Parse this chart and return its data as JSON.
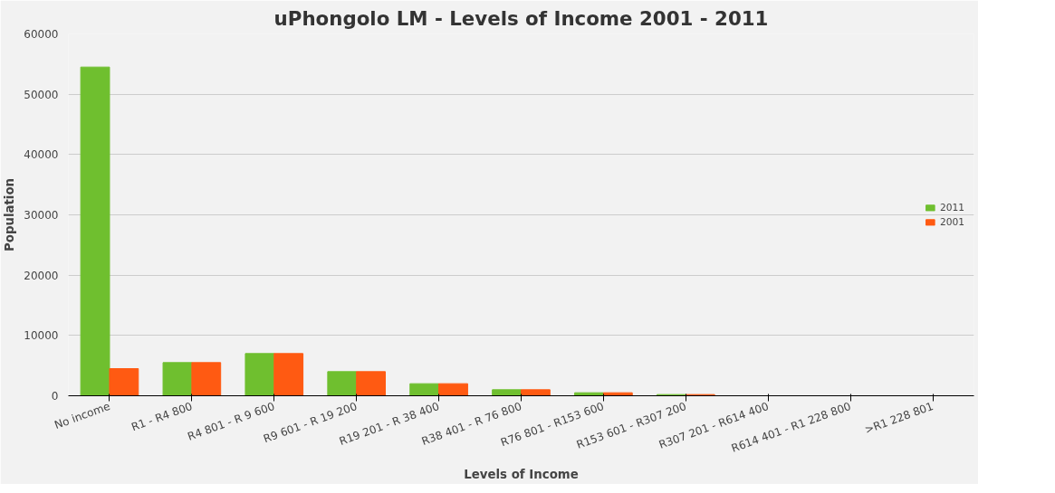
{
  "chart_data": {
    "type": "bar",
    "title": "uPhongolo LM - Levels of Income 2001 - 2011",
    "xlabel": "Levels of Income",
    "ylabel": "Population",
    "categories": [
      "No income",
      "R1 - R4 800",
      "R4 801 - R 9 600",
      "R9 601 - R 19 200",
      "R19 201 - R 38 400",
      "R38 401 - R 76 800",
      "R76 801 - R153 600",
      "R153 601 - R307 200",
      "R307 201 - R614 400",
      "R614 401 - R1 228 800",
      ">R1 228 801"
    ],
    "series": [
      {
        "name": "2011",
        "color": "#6fbf2f",
        "values": [
          54500,
          5500,
          7000,
          4000,
          2000,
          1000,
          500,
          200,
          null,
          null,
          null
        ]
      },
      {
        "name": "2001",
        "color": "#ff5a12",
        "values": [
          4500,
          5500,
          7000,
          4000,
          2000,
          1000,
          500,
          200,
          null,
          null,
          null
        ]
      }
    ],
    "ylim": [
      0,
      60000
    ],
    "yticks": [
      0,
      10000,
      20000,
      30000,
      40000,
      50000,
      60000
    ],
    "grid": "y",
    "legend": "right"
  }
}
